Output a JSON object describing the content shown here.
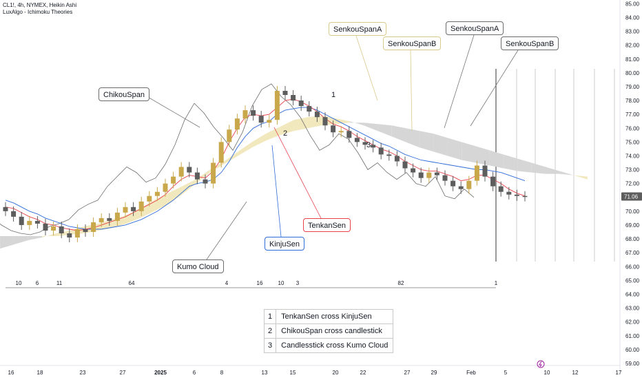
{
  "header": {
    "symbol_line": "CL1!, 4h, NYMEX, Heikin Ashi",
    "indicator_line": "LuxAlgo - Ichimoku Theories"
  },
  "chart_data": {
    "type": "candlestick",
    "title": "CL1!, 4h, NYMEX, Heikin Ashi",
    "ylim": [
      58.5,
      85.5
    ],
    "y_ticks": [
      59,
      60,
      61,
      62,
      63,
      64,
      65,
      66,
      67,
      68,
      69,
      70,
      71,
      72,
      73,
      74,
      75,
      76,
      77,
      78,
      79,
      80,
      81,
      82,
      83,
      84,
      85
    ],
    "y_tick_labels": [
      "59.00",
      "60.00",
      "61.00",
      "62.00",
      "63.00",
      "64.00",
      "65.00",
      "66.00",
      "67.00",
      "68.00",
      "69.00",
      "70.00",
      "71.00",
      "72.00",
      "73.00",
      "74.00",
      "75.00",
      "76.00",
      "77.00",
      "78.00",
      "79.00",
      "80.00",
      "81.00",
      "82.00",
      "83.00",
      "84.00",
      "85.00"
    ],
    "x_tick_labels": [
      "16",
      "18",
      "23",
      "27",
      "2025",
      "6",
      "8",
      "13",
      "15",
      "20",
      "22",
      "27",
      "29",
      "Feb",
      "5",
      "10",
      "12",
      "17"
    ],
    "last_price": "71.06",
    "series": [
      {
        "name": "Heikin Ashi close",
        "values": [
          70.0,
          69.6,
          69.0,
          69.3,
          69.1,
          68.6,
          68.9,
          68.4,
          68.1,
          68.7,
          68.5,
          69.2,
          69.5,
          69.3,
          69.9,
          70.3,
          70.0,
          70.7,
          71.1,
          71.4,
          72.0,
          72.5,
          73.2,
          72.8,
          72.3,
          72.0,
          73.5,
          75.0,
          75.9,
          76.7,
          77.3,
          76.9,
          76.4,
          76.6,
          78.7,
          78.4,
          78.0,
          77.6,
          77.2,
          76.8,
          76.2,
          75.7,
          75.8,
          75.3,
          75.0,
          74.8,
          74.6,
          74.1,
          74.0,
          73.6,
          73.1,
          72.8,
          72.4,
          72.8,
          72.6,
          72.2,
          71.8,
          71.6,
          72.2,
          73.3,
          72.5,
          71.8,
          71.4,
          71.2,
          71.1,
          71.06
        ]
      },
      {
        "name": "TenkanSen",
        "values": [
          70.3,
          70.2,
          69.9,
          69.6,
          69.4,
          69.1,
          69.0,
          68.8,
          68.7,
          68.6,
          68.7,
          68.8,
          69.0,
          69.2,
          69.4,
          69.6,
          69.9,
          70.2,
          70.5,
          70.8,
          71.2,
          71.8,
          72.3,
          72.6,
          72.5,
          72.4,
          72.9,
          73.8,
          75.0,
          76.0,
          76.8,
          77.0,
          76.9,
          77.0,
          77.5,
          78.0,
          78.1,
          77.9,
          77.6,
          77.2,
          76.7,
          76.3,
          76.1,
          75.8,
          75.4,
          75.1,
          74.8,
          74.5,
          74.3,
          74.0,
          73.6,
          73.3,
          73.0,
          72.9,
          72.9,
          72.7,
          72.5,
          72.2,
          72.3,
          72.6,
          72.6,
          72.3,
          72.0,
          71.6,
          71.3,
          71.1
        ]
      },
      {
        "name": "KinjuSen",
        "values": [
          70.8,
          70.6,
          70.3,
          70.0,
          69.8,
          69.5,
          69.3,
          69.1,
          68.9,
          68.8,
          68.7,
          68.7,
          68.7,
          68.8,
          68.9,
          69.0,
          69.2,
          69.4,
          69.7,
          70.0,
          70.4,
          70.8,
          71.3,
          71.8,
          72.0,
          72.1,
          72.3,
          72.8,
          73.6,
          74.6,
          75.4,
          76.0,
          76.3,
          76.5,
          77.0,
          77.3,
          77.4,
          77.5,
          77.5,
          77.3,
          77.0,
          76.7,
          76.4,
          76.1,
          75.8,
          75.5,
          75.2,
          74.9,
          74.7,
          74.4,
          74.1,
          73.9,
          73.7,
          73.6,
          73.5,
          73.4,
          73.3,
          73.2,
          73.1,
          73.0,
          73.0,
          72.9,
          72.8,
          72.6,
          72.4,
          72.2
        ]
      },
      {
        "name": "ChikouSpan",
        "values": [
          69.6,
          69.0,
          68.6,
          68.4,
          68.3,
          68.5,
          68.9,
          69.1,
          69.4,
          70.1,
          70.5,
          70.8,
          71.8,
          72.5,
          73.2,
          72.8,
          72.1,
          72.4,
          73.4,
          74.8,
          76.6,
          77.8,
          77.1,
          76.1,
          75.3,
          74.4,
          75.7,
          77.6,
          78.8,
          79.2,
          78.3,
          77.7,
          76.8,
          75.5,
          74.4,
          74.8,
          75.6,
          75.2,
          74.2,
          73.0,
          73.5,
          72.8,
          72.3,
          72.8,
          72.0,
          71.8,
          72.5,
          71.1,
          70.9,
          71.6,
          71.0
        ]
      },
      {
        "name": "SenkouSpanA",
        "values": [
          67.0,
          67.3,
          67.6,
          67.9,
          68.1,
          68.4,
          68.6,
          68.9,
          69.1,
          69.4,
          69.7,
          70.2,
          70.8,
          71.3,
          71.8,
          72.3,
          73.0,
          73.6,
          74.3,
          75.0,
          75.6,
          76.1,
          76.6,
          76.8,
          76.9,
          76.7,
          76.5,
          76.2,
          75.8,
          75.4,
          75.0,
          74.6,
          74.3,
          74.0,
          73.7,
          73.5,
          73.3,
          73.1,
          72.9,
          72.8,
          72.7,
          72.7,
          72.6,
          72.5
        ]
      },
      {
        "name": "SenkouSpanB",
        "values": [
          68.2,
          68.2,
          68.2,
          68.2,
          68.2,
          68.2,
          68.3,
          68.4,
          68.6,
          68.8,
          69.1,
          69.5,
          70.0,
          70.5,
          71.2,
          72.0,
          72.8,
          73.4,
          74.0,
          74.6,
          75.1,
          75.5,
          75.8,
          76.0,
          76.2,
          76.3,
          76.4,
          76.4,
          76.3,
          76.2,
          76.0,
          75.8,
          75.6,
          75.3,
          75.0,
          74.7,
          74.4,
          74.1,
          73.8,
          73.5,
          73.2,
          72.9,
          72.6,
          72.3
        ]
      }
    ],
    "cloud_colors": {
      "bullish": "#f2e8bd",
      "bearish": "#d6d6d6"
    },
    "candle_colors": {
      "up": "#c9a84c",
      "down": "#5d5d5d"
    },
    "line_colors": {
      "tenkan": "#e8414a",
      "kinju": "#2f6bd9",
      "chikou": "#6b6b6b"
    },
    "cross_markers": [
      "1",
      "2",
      "3"
    ],
    "segment_counts": [
      "10",
      "6",
      "11",
      "64",
      "4",
      "16",
      "10",
      "3",
      "82",
      "1"
    ],
    "annotations": [
      {
        "label": "ChikouSpan"
      },
      {
        "label": "SenkouSpanA"
      },
      {
        "label": "SenkouSpanB"
      },
      {
        "label": "SenkouSpanA"
      },
      {
        "label": "SenkouSpanB"
      },
      {
        "label": "TenkanSen"
      },
      {
        "label": "KinjuSen"
      },
      {
        "label": "Kumo Cloud"
      }
    ]
  },
  "legend_table": [
    {
      "num": "1",
      "text": "TenkanSen cross KinjuSen"
    },
    {
      "num": "2",
      "text": "ChikouSpan cross candlestick"
    },
    {
      "num": "3",
      "text": "Candlesstick cross Kumo Cloud"
    }
  ],
  "icons": {
    "lightning": "lightning-icon"
  }
}
